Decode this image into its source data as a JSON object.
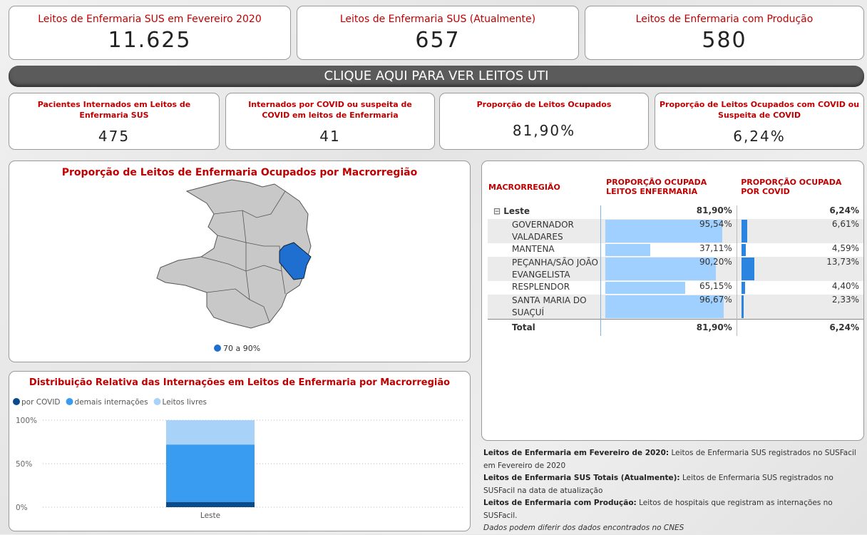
{
  "kpis_top": [
    {
      "title": "Leitos de Enfermaria SUS em Fevereiro 2020",
      "value": "11.625"
    },
    {
      "title": "Leitos de Enfermaria SUS (Atualmente)",
      "value": "657"
    },
    {
      "title": "Leitos de Enfermaria com Produção",
      "value": "580"
    }
  ],
  "uti_button": "CLIQUE AQUI PARA VER LEITOS UTI",
  "kpis_mid": [
    {
      "title": "Pacientes Internados em Leitos de Enfermaria SUS",
      "value": "475"
    },
    {
      "title": "Internados por COVID ou suspeita de COVID em leitos de Enfermaria",
      "value": "41"
    },
    {
      "title": "Proporção de Leitos Ocupados",
      "value": "81,90%"
    },
    {
      "title": "Proporção de Leitos Ocupados com COVID ou Suspeita de COVID",
      "value": "6,24%"
    }
  ],
  "map": {
    "title": "Proporção de Leitos de Enfermaria Ocupados por Macrorregião",
    "legend": "70 a 90%"
  },
  "table": {
    "headers": [
      "MACRORREGIÃO",
      "PROPORÇÃO OCUPADA LEITOS ENFERMARIA",
      "PROPORÇÃO OCUPADA POR COVID"
    ],
    "group": {
      "name": "Leste",
      "enf": "81,90%",
      "covid": "6,24%"
    },
    "rows": [
      {
        "name": "GOVERNADOR VALADARES",
        "enf": {
          "value": 95.54,
          "label": "95,54%"
        },
        "covid": {
          "value": 6.61,
          "label": "6,61%"
        }
      },
      {
        "name": "MANTENA",
        "enf": {
          "value": 37.11,
          "label": "37,11%"
        },
        "covid": {
          "value": 4.59,
          "label": "4,59%"
        }
      },
      {
        "name": "PEÇANHA/SÃO JOÃO EVANGELISTA",
        "enf": {
          "value": 90.2,
          "label": "90,20%"
        },
        "covid": {
          "value": 13.73,
          "label": "13,73%"
        }
      },
      {
        "name": "RESPLENDOR",
        "enf": {
          "value": 65.15,
          "label": "65,15%"
        },
        "covid": {
          "value": 4.4,
          "label": "4,40%"
        }
      },
      {
        "name": "SANTA MARIA DO SUAÇUÍ",
        "enf": {
          "value": 96.67,
          "label": "96,67%"
        },
        "covid": {
          "value": 2.33,
          "label": "2,33%"
        }
      }
    ],
    "total": {
      "name": "Total",
      "enf": "81,90%",
      "covid": "6,24%"
    }
  },
  "chart_data": {
    "type": "bar",
    "stacked": true,
    "title": "Distribuição Relativa das Internações em Leitos de Enfermaria por Macrorregião",
    "categories": [
      "Leste"
    ],
    "series": [
      {
        "name": "por COVID",
        "color": "#0b4a8b",
        "values": [
          6
        ]
      },
      {
        "name": "demais internações",
        "color": "#3a9cf0",
        "values": [
          66
        ]
      },
      {
        "name": "Leitos livres",
        "color": "#a8d2f8",
        "values": [
          28
        ]
      }
    ],
    "ylim": [
      0,
      100
    ],
    "yticks": [
      {
        "value": 0,
        "label": "0%"
      },
      {
        "value": 50,
        "label": "50%"
      },
      {
        "value": 100,
        "label": "100%"
      }
    ],
    "grid": true
  },
  "notes": [
    {
      "term": "Leitos de Enfermaria em Fevereiro de 2020:",
      "text": "Leitos de Enfermaria SUS registrados no SUSFacil em Fevereiro de 2020"
    },
    {
      "term": "Leitos de Enfermaria SUS Totais (Atualmente):",
      "text": "Leitos de Enfermaria SUS registrados no SUSFacil na data de atualização"
    },
    {
      "term": "Leitos de Enfermaria com Produção:",
      "text": "Leitos de hospitais que registram as internações no SUSFacil."
    }
  ],
  "disclaimer": "Dados podem diferir dos dados encontrados no CNES"
}
